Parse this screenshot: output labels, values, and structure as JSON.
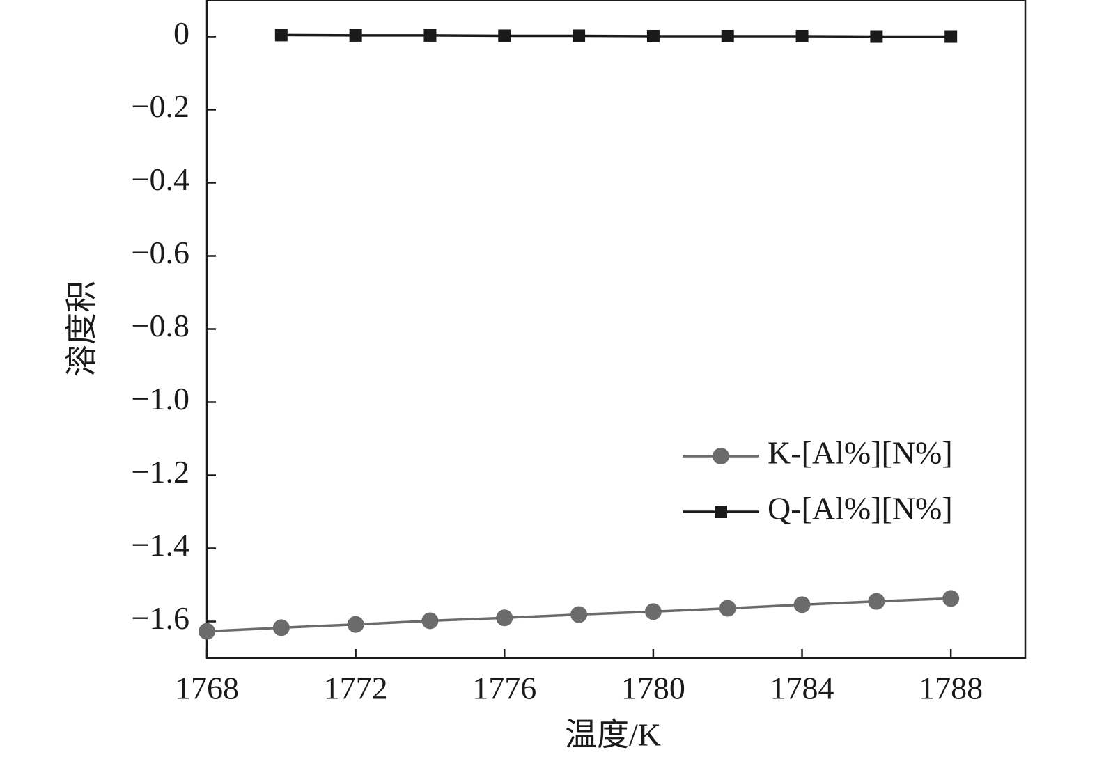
{
  "chart_data": {
    "type": "line",
    "x_label": "温度/K",
    "y_label": "溶度积",
    "xlim": [
      1768,
      1790
    ],
    "xticks": [
      1768,
      1772,
      1776,
      1780,
      1784,
      1788
    ],
    "ylim": [
      -1.7,
      0.1
    ],
    "yticks": [
      0,
      {
        "value": -0.2,
        "label": "−0.2"
      },
      {
        "value": -0.4,
        "label": "−0.4"
      },
      {
        "value": -0.6,
        "label": "−0.6"
      },
      {
        "value": -0.8,
        "label": "−0.8"
      },
      {
        "value": -1.0,
        "label": "−1.0"
      },
      {
        "value": -1.2,
        "label": "−1.2"
      },
      {
        "value": -1.4,
        "label": "−1.4"
      },
      {
        "value": -1.6,
        "label": "−1.6"
      }
    ],
    "legend": "right",
    "series": [
      {
        "name": "K-[Al%][N%]",
        "color": "#6b6b6b",
        "marker": "circle",
        "x": [
          1768,
          1770,
          1772,
          1774,
          1776,
          1778,
          1780,
          1782,
          1784,
          1786,
          1788
        ],
        "values": [
          -1.627,
          -1.617,
          -1.608,
          -1.598,
          -1.59,
          -1.581,
          -1.573,
          -1.564,
          -1.554,
          -1.545,
          -1.537
        ]
      },
      {
        "name": "Q-[Al%][N%]",
        "color": "#1a1a1a",
        "marker": "square",
        "x": [
          1770,
          1772,
          1774,
          1776,
          1778,
          1780,
          1782,
          1784,
          1786,
          1788
        ],
        "values": [
          0.004,
          0.003,
          0.003,
          0.002,
          0.002,
          0.001,
          0.001,
          0.001,
          0.0,
          0.0
        ]
      }
    ]
  }
}
